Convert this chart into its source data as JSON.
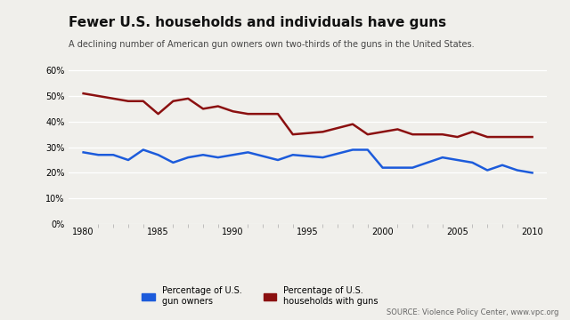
{
  "title": "Fewer U.S. households and individuals have guns",
  "subtitle": "A declining number of American gun owners own two-thirds of the guns in the United States.",
  "source": "SOURCE: Violence Policy Center, www.vpc.org",
  "background_color": "#f0efeb",
  "plot_bg_color": "#f0efeb",
  "years_owners": [
    1980,
    1981,
    1982,
    1983,
    1984,
    1985,
    1986,
    1987,
    1988,
    1989,
    1990,
    1991,
    1993,
    1994,
    1996,
    1998,
    1999,
    2000,
    2001,
    2002,
    2004,
    2005,
    2006,
    2007,
    2008,
    2009,
    2010
  ],
  "pct_owners": [
    28,
    27,
    27,
    25,
    29,
    27,
    24,
    26,
    27,
    26,
    27,
    28,
    25,
    27,
    26,
    29,
    29,
    22,
    22,
    22,
    26,
    25,
    24,
    21,
    23,
    21,
    20
  ],
  "years_households": [
    1980,
    1981,
    1982,
    1983,
    1984,
    1985,
    1986,
    1987,
    1988,
    1989,
    1990,
    1991,
    1993,
    1994,
    1996,
    1998,
    1999,
    2000,
    2001,
    2002,
    2004,
    2005,
    2006,
    2007,
    2009,
    2010
  ],
  "pct_households": [
    51,
    50,
    49,
    48,
    48,
    43,
    48,
    49,
    45,
    46,
    44,
    43,
    43,
    35,
    36,
    39,
    35,
    36,
    37,
    35,
    35,
    34,
    36,
    34,
    34,
    34
  ],
  "color_owners": "#1c5bdb",
  "color_households": "#8b1010",
  "ylim": [
    0,
    65
  ],
  "yticks": [
    0,
    10,
    20,
    30,
    40,
    50,
    60
  ],
  "xlim": [
    1979,
    2011
  ],
  "xticks": [
    1980,
    1985,
    1990,
    1995,
    2000,
    2005,
    2010
  ],
  "xtick_labels": [
    "1980",
    "1985",
    "1990",
    "1995",
    "2000",
    "2005",
    "2010"
  ],
  "legend_label_owners": "Percentage of U.S.\ngun owners",
  "legend_label_households": "Percentage of U.S.\nhouseholds with guns"
}
